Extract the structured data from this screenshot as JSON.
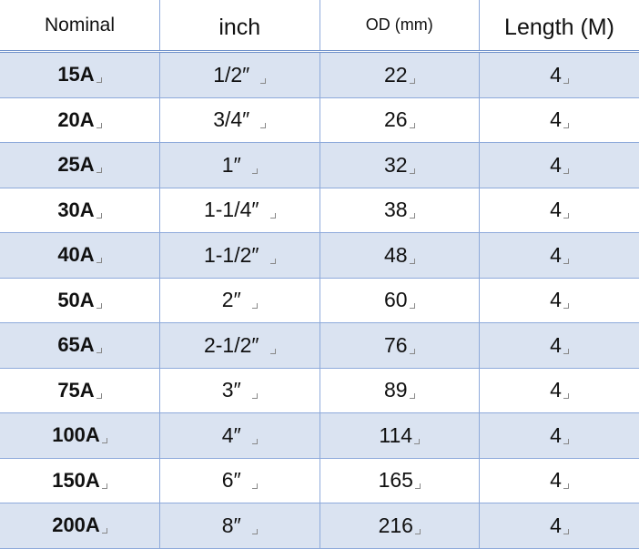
{
  "table": {
    "header": [
      "Nominal",
      "inch",
      "OD (mm)",
      "Length (M)"
    ],
    "rows": [
      [
        "15A",
        "1/2″",
        "22",
        "4"
      ],
      [
        "20A",
        "3/4″",
        "26",
        "4"
      ],
      [
        "25A",
        "1″",
        "32",
        "4"
      ],
      [
        "30A",
        "1-1/4″",
        "38",
        "4"
      ],
      [
        "40A",
        "1-1/2″",
        "48",
        "4"
      ],
      [
        "50A",
        "2″",
        "60",
        "4"
      ],
      [
        "65A",
        "2-1/2″",
        "76",
        "4"
      ],
      [
        "75A",
        "3″",
        "89",
        "4"
      ],
      [
        "100A",
        "4″",
        "114",
        "4"
      ],
      [
        "150A",
        "6″",
        "165",
        "4"
      ],
      [
        "200A",
        "8″",
        "216",
        "4"
      ]
    ]
  }
}
